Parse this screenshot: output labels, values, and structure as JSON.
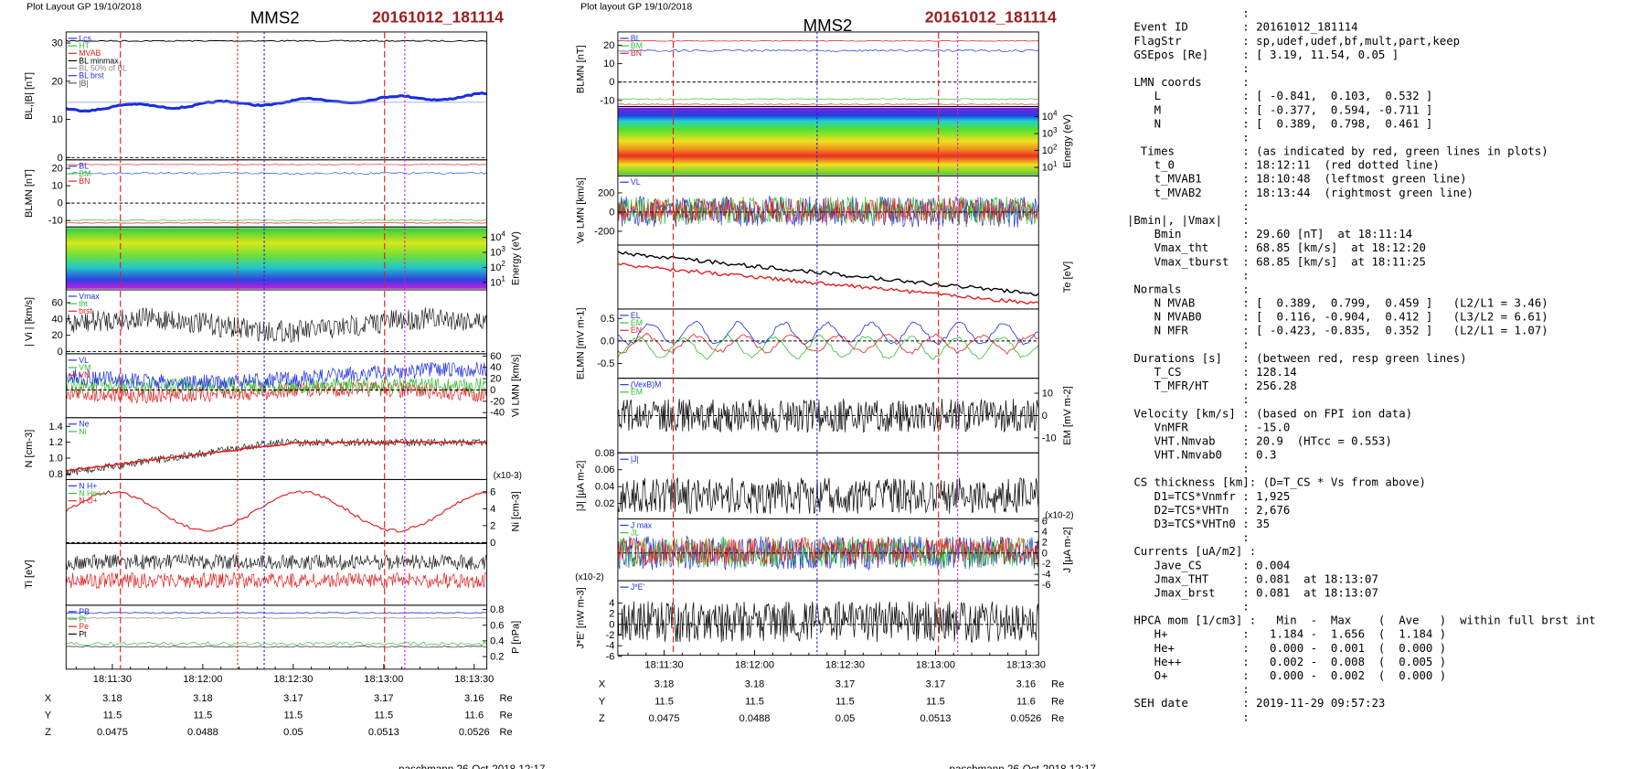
{
  "plots": [
    {
      "header": "Plot Layout GP 19/10/2018",
      "title": "MMS2",
      "event": "20161012_181114",
      "panels": [
        {
          "ylabel": "BL,|B| [nT]",
          "side": "left",
          "ylim": [
            -0.6,
            32.9
          ],
          "yticks": [
            30,
            20,
            10,
            0
          ],
          "legend": [
            "Lcs",
            "HT",
            "MVAB",
            "BL minmax",
            "BL 50% of BL",
            "BL brst",
            "|B|"
          ]
        },
        {
          "ylabel": "BLMN [nT]",
          "side": "left",
          "ylim": [
            -13.7,
            24.9
          ],
          "yticks": [
            20,
            10,
            0,
            -10
          ],
          "legend": [
            "BL",
            "BM",
            "BN"
          ]
        },
        {
          "ylabel": "Energy (eV)",
          "side": "right",
          "ylim": [
            0.5,
            4.7
          ],
          "yticks": [
            {
              "value": 4,
              "label": "10",
              "sup": "4"
            },
            {
              "value": 3,
              "label": "10",
              "sup": "3"
            },
            {
              "value": 2,
              "label": "10",
              "sup": "2"
            },
            {
              "value": 1,
              "label": "10",
              "sup": "1"
            }
          ],
          "legend": []
        },
        {
          "ylabel": "| Vi | [km/s]",
          "side": "left",
          "ylim": [
            -2.6,
            75.6
          ],
          "yticks": [
            60,
            40,
            20,
            0
          ],
          "legend": [
            "Vmax",
            "tht",
            "brst"
          ]
        },
        {
          "ylabel": "Vi LMN [km/s]",
          "side": "right",
          "ylim": [
            -49,
            64
          ],
          "yticks": [
            60,
            40,
            20,
            0,
            -20,
            -40
          ],
          "legend": [
            "VL",
            "VM",
            "VN"
          ]
        },
        {
          "ylabel": "N [cm-3]",
          "side": "left",
          "ylim": [
            0.73,
            1.51
          ],
          "yticks": [
            1.4,
            1.2,
            {
              "value": 1,
              "label": "1.0"
            },
            0.8
          ],
          "legend": [
            "Ne",
            "Ni"
          ]
        },
        {
          "ylabel": "Ni [cm-3]",
          "side": "right",
          "ylim": [
            -0.1,
            7.45
          ],
          "yticks": [
            6,
            4,
            2,
            0
          ],
          "multiplier": "(x10-3)",
          "legend": [
            "N  H+",
            "N  He++",
            "N  O+"
          ]
        },
        {
          "ylabel": "Ti [eV]",
          "side": "left",
          "ylim": [
            0,
            1
          ],
          "yticks": [],
          "legend": []
        },
        {
          "ylabel": "P [nPa]",
          "side": "right",
          "ylim": [
            0.04,
            0.855
          ],
          "yticks": [
            0.8,
            0.6,
            0.4,
            0.2
          ],
          "legend": [
            "PB",
            "Pi",
            "Pe",
            "Pt"
          ]
        }
      ],
      "xticks": [
        "18:11:30",
        "18:12:00",
        "18:12:30",
        "18:13:00",
        "18:13:30"
      ],
      "ephemeris": [
        {
          "name": "X",
          "values": [
            "3.18",
            "3.18",
            "3.17",
            "3.17",
            "3.16"
          ],
          "unit": "Re"
        },
        {
          "name": "Y",
          "values": [
            "11.5",
            "11.5",
            "11.5",
            "11.5",
            "11.6"
          ],
          "unit": "Re"
        },
        {
          "name": "Z",
          "values": [
            "0.0475",
            "0.0488",
            "0.05",
            "0.0513",
            "0.0526"
          ],
          "unit": "Re"
        }
      ],
      "footer": "paschmann 26-Oct-2018 12:17"
    },
    {
      "header": "Plot layout GP 19/10/2018",
      "title": "MMS2",
      "event": "20161012_181114",
      "panels": [
        {
          "ylabel": "BLMN [nT]",
          "side": "left",
          "ylim": [
            -13.3,
            27.2
          ],
          "yticks": [
            20,
            10,
            0,
            -10
          ],
          "legend": [
            "BL",
            "BM",
            "BN"
          ]
        },
        {
          "ylabel": "Energy (eV)",
          "side": "right",
          "ylim": [
            0.5,
            4.6
          ],
          "yticks": [
            {
              "value": 4,
              "label": "10",
              "sup": "4"
            },
            {
              "value": 3,
              "label": "10",
              "sup": "3"
            },
            {
              "value": 2,
              "label": "10",
              "sup": "2"
            },
            {
              "value": 1,
              "label": "10",
              "sup": "1"
            }
          ],
          "legend": []
        },
        {
          "ylabel": "Ve LMN [km/s]",
          "side": "left",
          "ylim": [
            -344,
            378
          ],
          "yticks": [
            200,
            0,
            -200
          ],
          "legend": [
            "VL"
          ]
        },
        {
          "ylabel": "Te [eV]",
          "side": "right",
          "ylim": [
            0,
            1
          ],
          "yticks": [],
          "legend": []
        },
        {
          "ylabel": "ELMN [mV m-1]",
          "side": "left",
          "ylim": [
            -0.83,
            0.71
          ],
          "yticks": [
            0.5,
            {
              "value": 0,
              "label": "0.0"
            },
            -0.5
          ],
          "legend": [
            "EL",
            "EM",
            "EN"
          ]
        },
        {
          "ylabel": "EM [mV m-2]",
          "side": "right",
          "ylim": [
            -16.7,
            16.7
          ],
          "yticks": [
            10,
            0,
            -10
          ],
          "legend": [
            "(VexB)M",
            "EM"
          ]
        },
        {
          "ylabel": "|J| [µA m-2]",
          "side": "left",
          "ylim": [
            0.0017,
            0.08
          ],
          "yticks": [
            0.08,
            0.06,
            0.04,
            0.02
          ],
          "legend": [
            "|J|"
          ]
        },
        {
          "ylabel": "J [µA m-2]",
          "side": "right",
          "ylim": [
            -5.2,
            6.4
          ],
          "yticks": [
            6,
            4,
            2,
            0,
            -2,
            -4,
            -6
          ],
          "multiplier": "(x10-2)",
          "legend": [
            "J max",
            "JL"
          ]
        },
        {
          "ylabel": "J*E' [nW m-3]",
          "side": "left",
          "ylim": [
            -5.8,
            8.2
          ],
          "yticks": [
            4,
            2,
            0,
            -2,
            -4,
            -6
          ],
          "multiplier": "(x10-2)",
          "legend": [
            "J*E'"
          ]
        }
      ],
      "xticks": [
        "18:11:30",
        "18:12:00",
        "18:12:30",
        "18:13:00",
        "18:13:30"
      ],
      "ephemeris": [
        {
          "name": "X",
          "values": [
            "3.18",
            "3.18",
            "3.17",
            "3.17",
            "3.16"
          ],
          "unit": "Re"
        },
        {
          "name": "Y",
          "values": [
            "11.5",
            "11.5",
            "11.5",
            "11.5",
            "11.6"
          ],
          "unit": "Re"
        },
        {
          "name": "Z",
          "values": [
            "0.0475",
            "0.0488",
            "0.05",
            "0.0513",
            "0.0526"
          ],
          "unit": "Re"
        }
      ],
      "footer": "paschmann 26-Oct-2018 12:17"
    }
  ],
  "info_lines": [
    "                 :",
    " Event ID        : 20161012_181114",
    " FlagStr         : sp,udef,udef,bf,mult,part,keep",
    " GSEpos [Re]     : [ 3.19, 11.54, 0.05 ]",
    "                 :",
    " LMN coords      :",
    "    L            : [ -0.841,  0.103,  0.532 ]",
    "    M            : [ -0.377,  0.594, -0.711 ]",
    "    N            : [  0.389,  0.798,  0.461 ]",
    "                 :",
    "  Times          : (as indicated by red, green lines in plots)",
    "    t_0          : 18:12:11  (red dotted line)",
    "    t_MVAB1      : 18:10:48  (leftmost green line)",
    "    t_MVAB2      : 18:13:44  (rightmost green line)",
    "                 :",
    "|Bmin|, |Vmax|   :",
    "    Bmin         : 29.60 [nT]  at 18:11:14",
    "    Vmax_tht     : 68.85 [km/s]  at 18:12:20",
    "    Vmax_tburst  : 68.85 [km/s]  at 18:11:25",
    "                 :",
    " Normals         :",
    "    N MVAB       : [  0.389,  0.799,  0.459 ]   (L2/L1 = 3.46)",
    "    N MVAB0      : [  0.116, -0.904,  0.412 ]   (L3/L2 = 6.61)",
    "    N MFR        : [ -0.423, -0.835,  0.352 ]   (L2/L1 = 1.07)",
    "                 :",
    " Durations [s]   : (between red, resp green lines)",
    "    T_CS         : 128.14",
    "    T_MFR/HT     : 256.28",
    "                 :",
    " Velocity [km/s] : (based on FPI ion data)",
    "    VnMFR        : -15.0",
    "    VHT.Nmvab    : 20.9  (HTcc = 0.553)",
    "    VHT.Nmvab0   : 0.3",
    "                 :",
    " CS thickness [km]: (D=T_CS * Vs from above)",
    "    D1=TCS*Vnmfr : 1,925",
    "    D2=TCS*VHTn  : 2,676",
    "    D3=TCS*VHTn0 : 35",
    "                 :",
    " Currents [uA/m2] :",
    "    Jave_CS      : 0.004",
    "    Jmax_THT     : 0.081  at 18:13:07",
    "    Jmax_brst    : 0.081  at 18:13:07",
    "                 :",
    " HPCA mom [1/cm3] :   Min  -  Max    (  Ave   )  within full brst int",
    "    H+           :   1.184 -  1.656  (  1.184 )",
    "    He+          :   0.000 -  0.001  (  0.000 )",
    "    He++         :   0.002 -  0.008  (  0.005 )",
    "    O+           :   0.000 -  0.002  (  0.000 )",
    "                 :",
    " SEH date        : 2019-11-29 09:57:23",
    "                 :"
  ]
}
